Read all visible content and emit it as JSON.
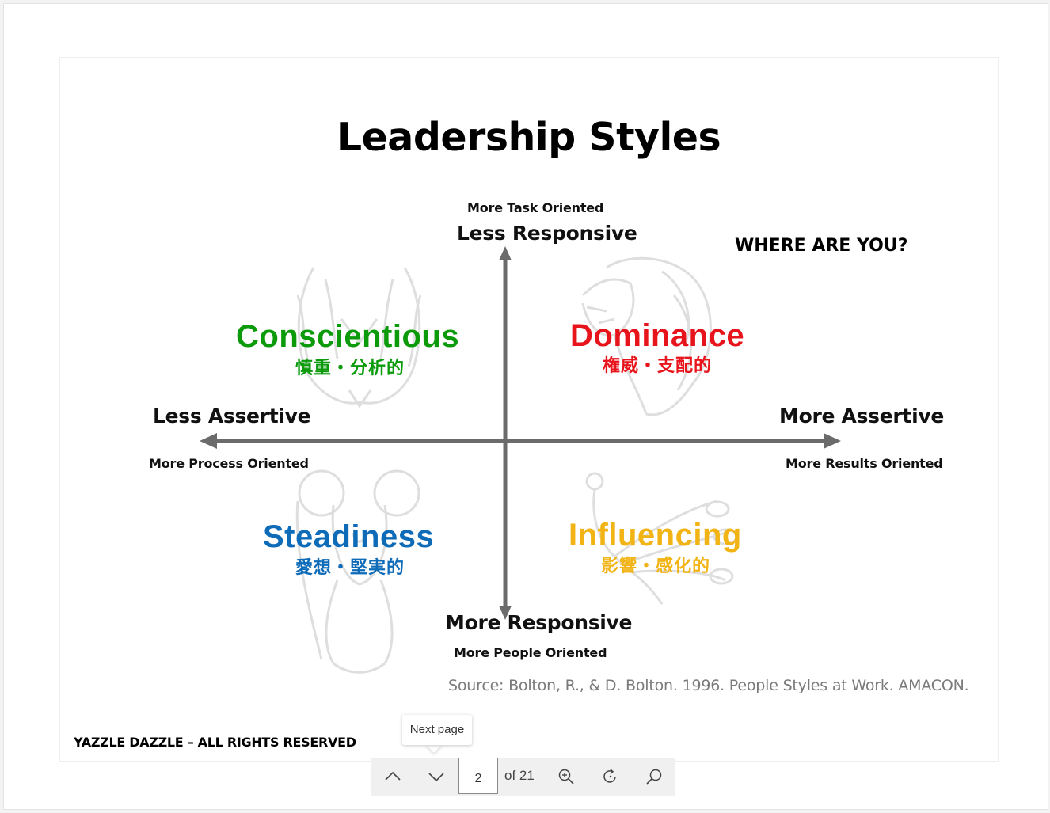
{
  "slide": {
    "title": "Leadership Styles",
    "question": "WHERE ARE YOU?",
    "axes": {
      "top_small": "More Task Oriented",
      "top_big": "Less Responsive",
      "left_big": "Less Assertive",
      "left_small": "More Process Oriented",
      "right_big": "More Assertive",
      "right_small": "More Results Oriented",
      "bottom_big": "More Responsive",
      "bottom_small": "More People Oriented"
    },
    "quadrants": {
      "conscientious": {
        "name": "Conscientious",
        "sub": "慎重・分析的",
        "color": "#0a9a0a",
        "animal": "owl"
      },
      "dominance": {
        "name": "Dominance",
        "sub": "権威・支配的",
        "color": "#e8141b",
        "animal": "lion"
      },
      "steadiness": {
        "name": "Steadiness",
        "sub": "愛想・堅実的",
        "color": "#0e6bb8",
        "animal": "koala"
      },
      "influencing": {
        "name": "Influencing",
        "sub": "影響・感化的",
        "color": "#f2b415",
        "animal": "peacock"
      }
    },
    "source": "Source: Bolton, R., & D. Bolton. 1996. People Styles at Work. AMACON.",
    "footer": "YAZZLE DAZZLE – ALL RIGHTS RESERVED"
  },
  "toolbar": {
    "current_page": "2",
    "page_of": "of 21",
    "tooltip": "Next page",
    "icons": [
      "chevron-up-icon",
      "chevron-down-icon",
      "zoom-in-icon",
      "rotate-icon",
      "search-icon"
    ]
  }
}
